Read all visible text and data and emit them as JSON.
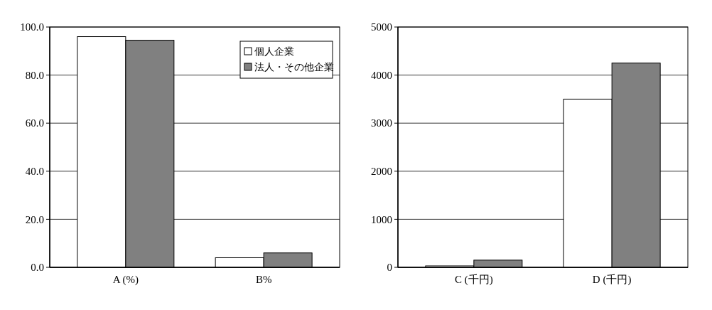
{
  "chart_data": [
    {
      "type": "bar",
      "categories": [
        "A (%)",
        "B%"
      ],
      "series": [
        {
          "name": "個人企業",
          "color": "#ffffff",
          "values": [
            96.0,
            4.0
          ]
        },
        {
          "name": "法人・その他企業",
          "color": "#808080",
          "values": [
            94.5,
            6.0
          ]
        }
      ],
      "ylim": [
        0,
        100
      ],
      "yticks": [
        {
          "value": 0,
          "label": "0.0"
        },
        {
          "value": 20,
          "label": "20.0"
        },
        {
          "value": 40,
          "label": "40.0"
        },
        {
          "value": 60,
          "label": "60.0"
        },
        {
          "value": 80,
          "label": "80.0"
        },
        {
          "value": 100,
          "label": "100.0"
        }
      ],
      "grid": "y",
      "legend": "top right"
    },
    {
      "type": "bar",
      "categories": [
        "C (千円)",
        "D (千円)"
      ],
      "series": [
        {
          "color": "#ffffff",
          "values": [
            30,
            3500
          ]
        },
        {
          "color": "#808080",
          "values": [
            150,
            4250
          ]
        }
      ],
      "ylim": [
        0,
        5000
      ],
      "yticks": [
        0,
        1000,
        2000,
        3000,
        4000,
        5000
      ],
      "grid": "y"
    }
  ]
}
